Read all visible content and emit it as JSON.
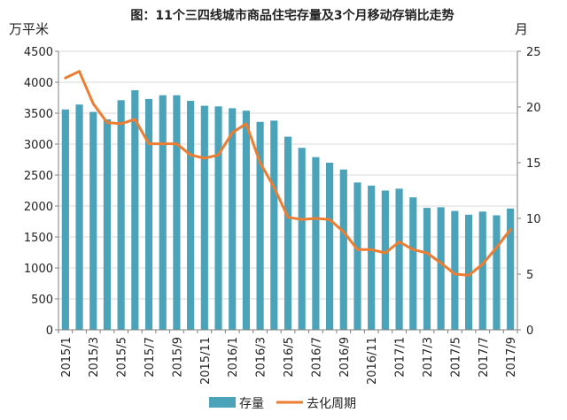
{
  "chart_data": {
    "type": "bar",
    "title": "图：11个三四线城市商品住宅存量及3个月移动存销比走势",
    "ylabel_left": "万平米",
    "ylabel_right": "月",
    "ylim_left": [
      0,
      4500
    ],
    "ylim_right": [
      0,
      25
    ],
    "yticks_left": [
      "0",
      "500",
      "1000",
      "1500",
      "2000",
      "2500",
      "3000",
      "3500",
      "4000",
      "4500"
    ],
    "yticks_right": [
      "0",
      "5",
      "10",
      "15",
      "20",
      "25"
    ],
    "categories": [
      "2015/1",
      "2015/2",
      "2015/3",
      "2015/4",
      "2015/5",
      "2015/6",
      "2015/7",
      "2015/8",
      "2015/9",
      "2015/10",
      "2015/11",
      "2015/12",
      "2016/1",
      "2016/2",
      "2016/3",
      "2016/4",
      "2016/5",
      "2016/6",
      "2016/7",
      "2016/8",
      "2016/9",
      "2016/10",
      "2016/11",
      "2016/12",
      "2017/1",
      "2017/2",
      "2017/3",
      "2017/4",
      "2017/5",
      "2017/6",
      "2017/7",
      "2017/8",
      "2017/9"
    ],
    "x_tick_labels": [
      "2015/1",
      "2015/3",
      "2015/5",
      "2015/7",
      "2015/9",
      "2015/11",
      "2016/1",
      "2016/3",
      "2016/5",
      "2016/7",
      "2016/9",
      "2016/11",
      "2017/1",
      "2017/3",
      "2017/5",
      "2017/7",
      "2017/9"
    ],
    "grid": true,
    "legend_position": "bottom",
    "series": [
      {
        "name": "存量",
        "type": "bar",
        "axis": "left",
        "color": "#4aa3b8",
        "values": [
          3560,
          3640,
          3520,
          3400,
          3710,
          3870,
          3730,
          3790,
          3790,
          3700,
          3620,
          3610,
          3580,
          3540,
          3360,
          3380,
          3120,
          2940,
          2790,
          2700,
          2590,
          2380,
          2330,
          2250,
          2280,
          2140,
          1970,
          1980,
          1920,
          1860,
          1910,
          1850,
          1960
        ]
      },
      {
        "name": "去化周期",
        "type": "line",
        "axis": "right",
        "color": "#ed7d31",
        "values": [
          22.6,
          23.2,
          20.3,
          18.6,
          18.5,
          18.9,
          16.7,
          16.7,
          16.7,
          15.7,
          15.4,
          15.7,
          17.7,
          18.5,
          15.0,
          12.8,
          10.1,
          9.9,
          10.0,
          9.9,
          8.8,
          7.2,
          7.2,
          6.9,
          7.9,
          7.2,
          6.9,
          6.0,
          5.0,
          4.9,
          5.9,
          7.4,
          9.0
        ]
      }
    ]
  }
}
